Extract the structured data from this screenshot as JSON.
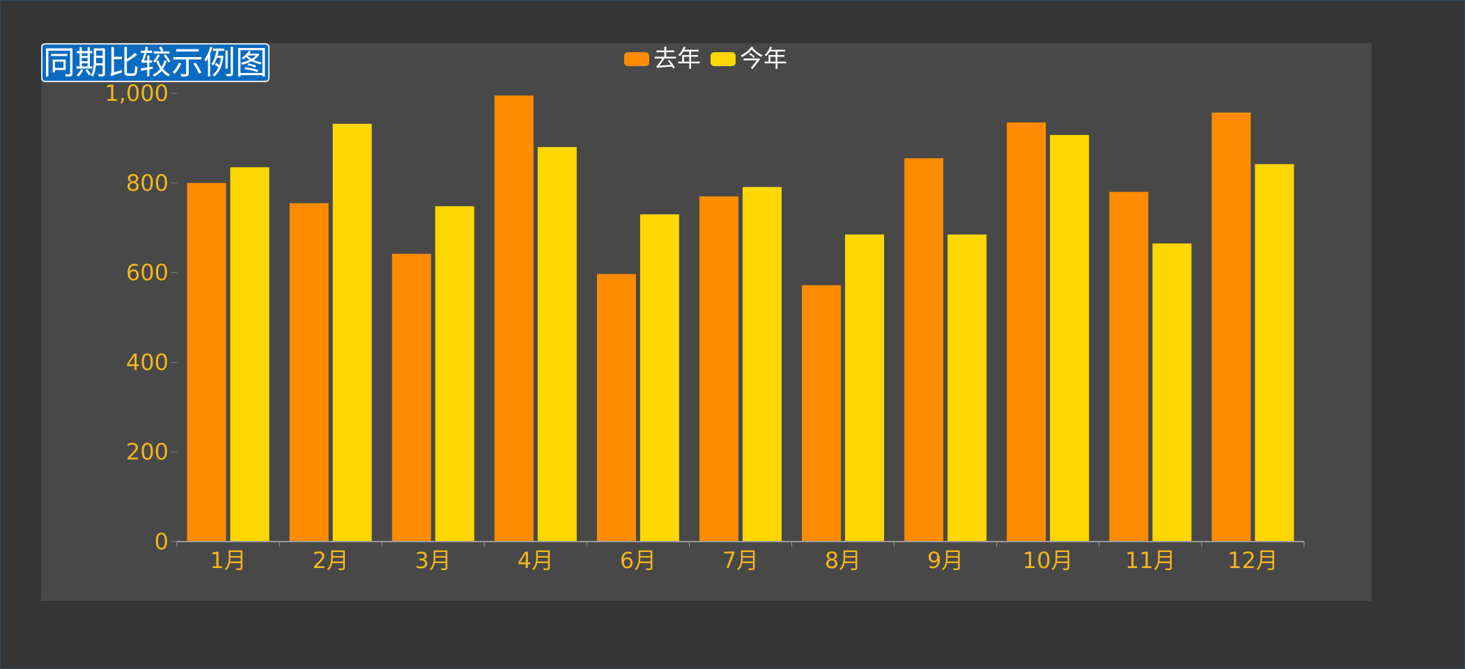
{
  "title": "同期比较示例图",
  "colors": {
    "last_year": "#ff8c00",
    "this_year": "#ffd700",
    "axis_label": "#f2b51e",
    "title_bg": "#0a6cc0",
    "panel_bg": "#484848",
    "page_bg": "#353535"
  },
  "chart_data": {
    "type": "bar",
    "categories": [
      "1月",
      "2月",
      "3月",
      "4月",
      "6月",
      "7月",
      "8月",
      "9月",
      "10月",
      "11月",
      "12月"
    ],
    "series": [
      {
        "name": "去年",
        "color": "#ff8c00",
        "values": [
          800,
          755,
          642,
          995,
          597,
          770,
          572,
          855,
          935,
          780,
          957
        ]
      },
      {
        "name": "今年",
        "color": "#ffd700",
        "values": [
          835,
          932,
          748,
          880,
          730,
          791,
          685,
          685,
          907,
          665,
          842
        ]
      }
    ],
    "ylim": [
      0,
      1000
    ],
    "yticks": [
      0,
      200,
      400,
      600,
      800,
      1000
    ],
    "ytick_labels": [
      "0",
      "200",
      "400",
      "600",
      "800",
      "1,000"
    ],
    "legend_position": "top-center",
    "grid": false,
    "xlabel": "",
    "ylabel": ""
  }
}
